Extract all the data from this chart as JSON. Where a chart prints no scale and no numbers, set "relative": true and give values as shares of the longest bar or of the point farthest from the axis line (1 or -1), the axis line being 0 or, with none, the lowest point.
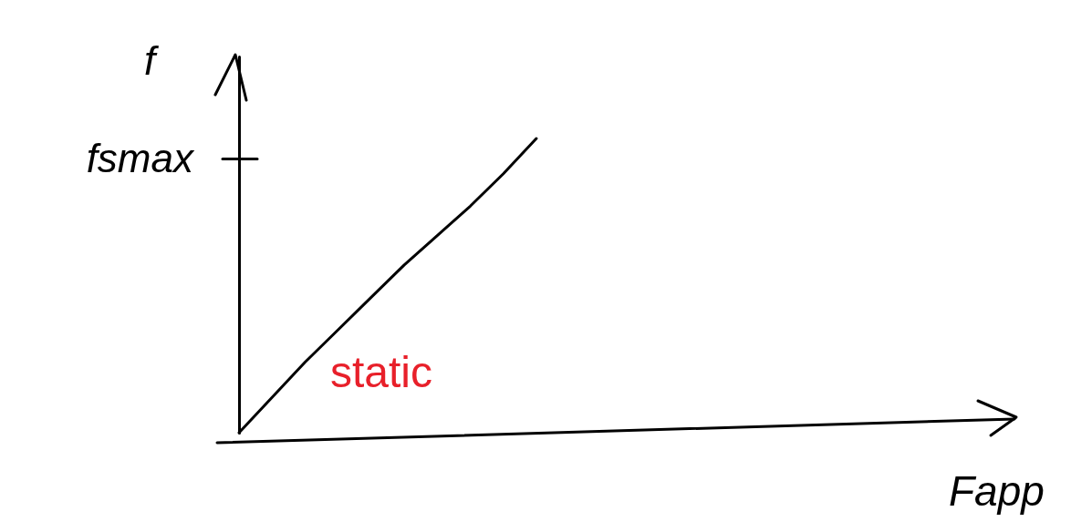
{
  "chart_data": {
    "type": "line",
    "relative": true,
    "xlabel": "Fapp",
    "ylabel": "f",
    "categories": [
      null,
      null,
      null,
      null,
      null,
      null,
      null,
      null,
      null,
      null,
      null,
      null,
      null,
      null,
      null,
      null,
      null,
      null,
      null,
      null,
      null,
      null,
      null,
      null
    ],
    "series": [
      {
        "color": "#000000",
        "values": [
          0,
          0.12,
          0.24,
          0.35,
          0.46,
          0.57,
          0.67,
          0.77,
          0.88,
          1,
          null,
          null,
          null,
          null,
          null,
          null,
          null,
          null,
          null,
          null,
          null,
          null,
          null,
          null
        ]
      }
    ],
    "ref_lines": [
      {
        "axis": "y",
        "value": 0.93,
        "label": "fsmax"
      }
    ],
    "annotations": [
      "static"
    ],
    "line_style": "solid"
  }
}
